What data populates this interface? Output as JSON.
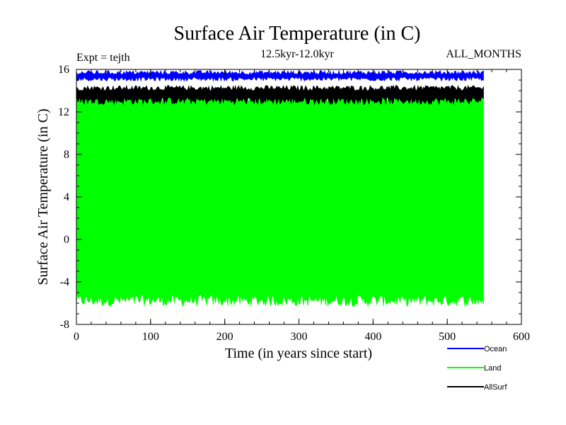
{
  "chart_data": {
    "type": "line",
    "title": "Surface Air Temperature (in C)",
    "subtitle": "12.5kyr-12.0kyr",
    "annotation_left": "Expt = tejth",
    "annotation_right": "ALL_MONTHS",
    "xlabel": "Time (in years since start)",
    "ylabel": "Surface Air Temperature (in C)",
    "xlim": [
      0,
      600
    ],
    "ylim": [
      -8,
      16
    ],
    "xticks": [
      0,
      100,
      200,
      300,
      400,
      500,
      600
    ],
    "xtick_labels": [
      "0",
      "100",
      "200",
      "300",
      "400",
      "500",
      "600"
    ],
    "yticks": [
      -8,
      -4,
      0,
      4,
      8,
      12,
      16
    ],
    "ytick_labels": [
      "-8",
      "-4",
      "0",
      "4",
      "8",
      "12",
      "16"
    ],
    "grid": false,
    "legend_position": "bottom-right",
    "x_extent": [
      0,
      550
    ],
    "series": [
      {
        "name": "Ocean",
        "color": "#0000ff",
        "min_range": [
          14.9,
          15.3
        ],
        "max_range": [
          15.5,
          15.9
        ]
      },
      {
        "name": "Land",
        "color": "#00ff00",
        "min_range": [
          -6.3,
          -5.2
        ],
        "max_range": [
          12.9,
          13.9
        ]
      },
      {
        "name": "AllSurf",
        "color": "#000000",
        "min_range": [
          12.7,
          13.4
        ],
        "max_range": [
          14.0,
          14.5
        ]
      }
    ]
  }
}
